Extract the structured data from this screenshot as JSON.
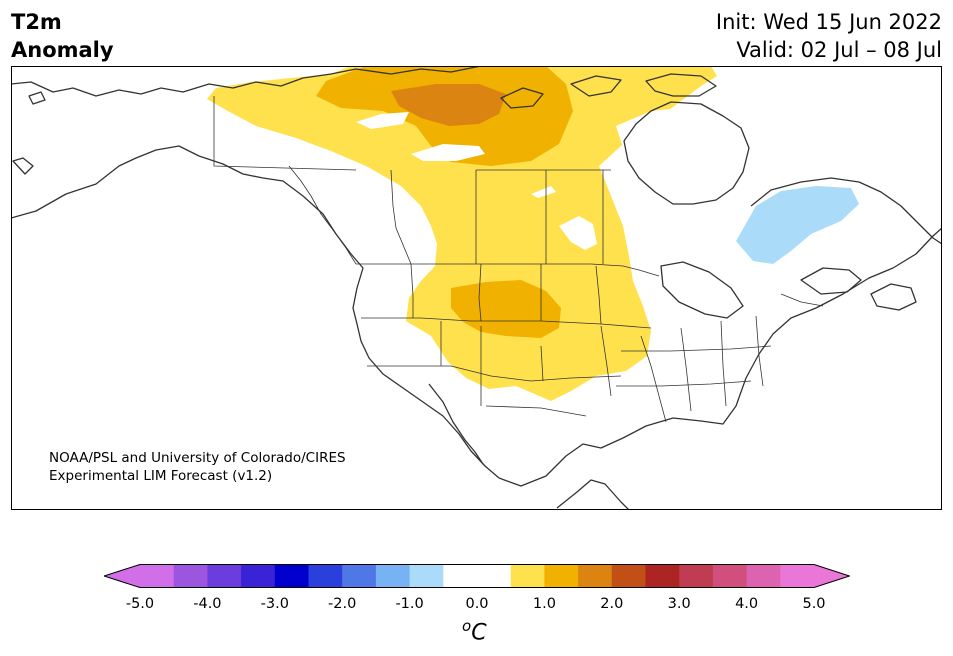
{
  "title": {
    "left_line1": "T2m",
    "left_line2": "Anomaly",
    "right_line1": "Init: Wed 15 Jun 2022",
    "right_line2": "Valid: 02 Jul – 08 Jul"
  },
  "credit": {
    "line1": "NOAA/PSL and University of Colorado/CIRES",
    "line2": "Experimental LIM Forecast (v1.2)"
  },
  "colorbar": {
    "tick_labels": [
      "-5.0",
      "-4.0",
      "-3.0",
      "-2.0",
      "-1.0",
      "0.0",
      "1.0",
      "2.0",
      "3.0",
      "4.0",
      "5.0"
    ],
    "unit_base": "C",
    "unit_sup": "o",
    "colors": [
      "#d16fe8",
      "#9b55df",
      "#6a3ddc",
      "#3a22d6",
      "#0000cc",
      "#2a3fdc",
      "#4f78e6",
      "#78b2f2",
      "#aadcfa",
      "#ffffff",
      "#ffffff",
      "#ffe14d",
      "#f1b100",
      "#dc8412",
      "#c24f17",
      "#ad2424",
      "#bf3c52",
      "#d04f7c",
      "#dd63b0",
      "#ea76d8"
    ],
    "under_color": "#d16fe8",
    "over_color": "#ea76d8"
  },
  "map_colors": {
    "light_yellow": "#ffe14d",
    "gold": "#f1b100",
    "orange": "#dc8412",
    "light_blue": "#aadcfa",
    "coast": "#333333"
  }
}
